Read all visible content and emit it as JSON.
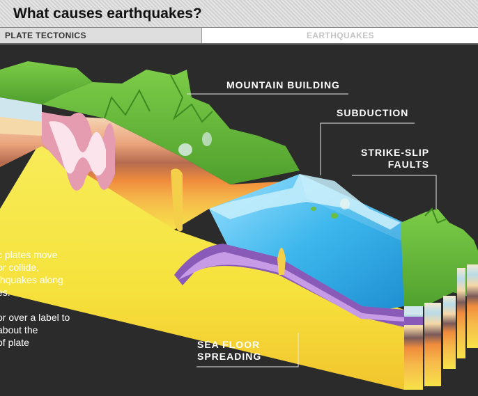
{
  "header": {
    "title": "What causes earthquakes?"
  },
  "tabs": [
    {
      "label": "PLATE TECTONICS",
      "active": true
    },
    {
      "label": "EARTHQUAKES",
      "active": false
    }
  ],
  "labels": {
    "mountain_building": "MOUNTAIN BUILDING",
    "subduction": "SUBDUCTION",
    "strike_slip_line1": "STRIKE-SLIP",
    "strike_slip_line2": "FAULTS",
    "sea_floor_line1": "SEA FLOOR",
    "sea_floor_line2": "SPREADING"
  },
  "intro": {
    "paragraph1_line1": "c plates move",
    "paragraph1_line2": " or collide,",
    "paragraph1_line3": "thquakes along",
    "paragraph1_line4": "es.",
    "paragraph2_line1": "or over a label to",
    "paragraph2_line2": " about the",
    "paragraph2_line3": " of plate"
  },
  "colors": {
    "background": "#2b2b2b",
    "land_green": "#6cbf3e",
    "ocean_blue": "#2fa8e0",
    "mantle_yellow": "#f7e64a",
    "plate_purple": "#8a5ab8"
  }
}
